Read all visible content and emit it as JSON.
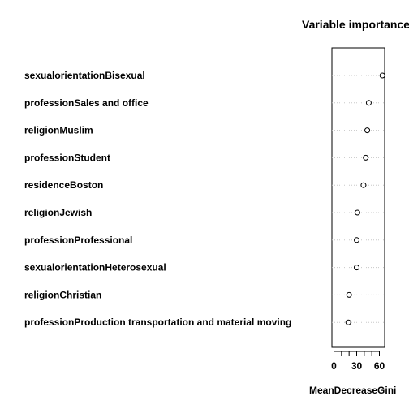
{
  "chart_data": {
    "type": "scatter",
    "title": "Variable importance",
    "xlabel": "MeanDecreaseGini",
    "ylabel": "",
    "xlim": [
      0,
      67
    ],
    "x_ticks": [
      "0",
      "30",
      "60"
    ],
    "x_tick_values": [
      0,
      30,
      60
    ],
    "grid": "dotted horizontal guide lines",
    "legend": "none",
    "categories": [
      "sexualorientationBisexual",
      "professionSales and office",
      "religionMuslim",
      "professionStudent",
      "residenceBoston",
      "religionJewish",
      "professionProfessional",
      "sexualorientationHeterosexual",
      "religionChristian",
      "professionProduction transportation and material moving"
    ],
    "values": [
      64,
      46,
      44,
      42,
      39,
      31,
      30,
      30,
      20,
      19
    ]
  }
}
